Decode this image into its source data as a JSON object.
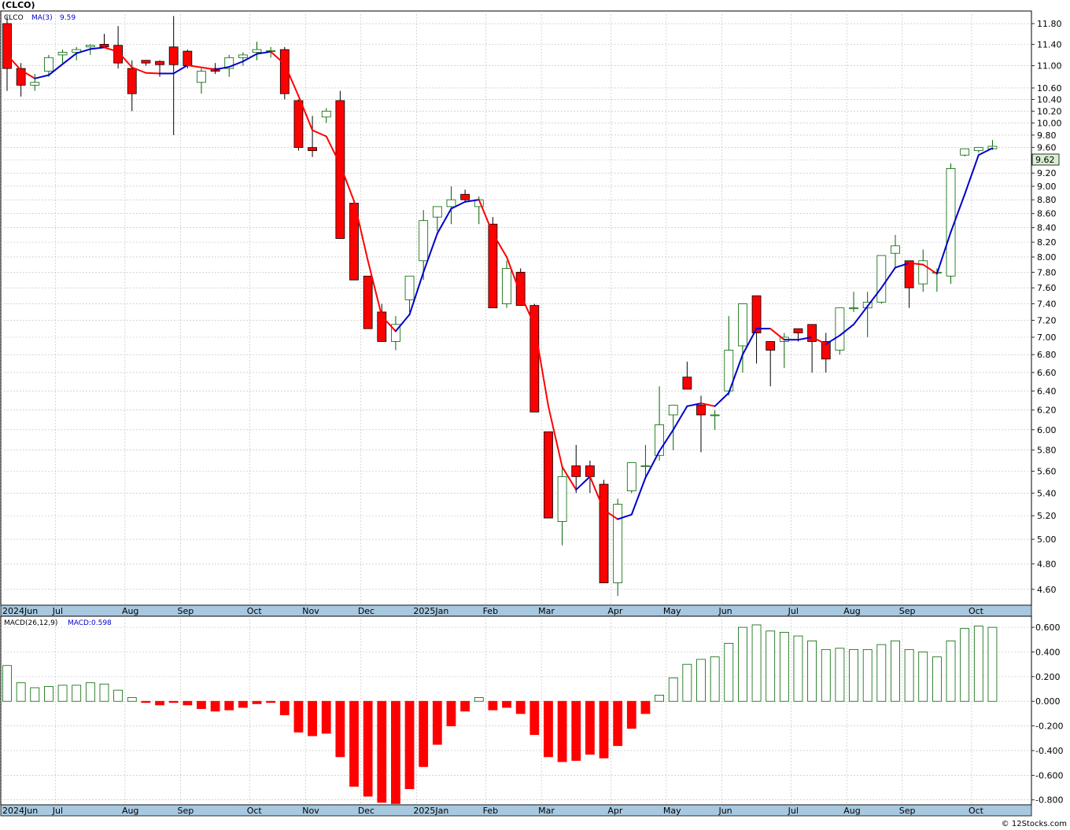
{
  "title": "(CLCO)",
  "watermark": "© 12Stocks.com",
  "price_legend": {
    "symbol": "CLCO",
    "ma_label": "MA(3)",
    "ma_value": "9.59"
  },
  "macd_legend": {
    "label": "MACD(26,12,9)",
    "value": "MACD:0.598"
  },
  "last_price": "9.62",
  "colors": {
    "up": "#006400",
    "down": "#ff0000",
    "ma_up": "#0000cc",
    "ma_down": "#ff0000",
    "grid": "#bbbbbb",
    "axis_bar": "#a8c8e0",
    "last_price_bg": "#d8f0d0"
  },
  "chart_data": [
    {
      "type": "candlestick",
      "title": "(CLCO)",
      "yticks": [
        "11.80",
        "11.40",
        "11.00",
        "10.60",
        "10.40",
        "10.20",
        "10.00",
        "9.80",
        "9.60",
        "9.40",
        "9.20",
        "9.00",
        "8.80",
        "8.60",
        "8.40",
        "8.20",
        "8.00",
        "7.80",
        "7.60",
        "7.40",
        "7.20",
        "7.00",
        "6.80",
        "6.60",
        "6.40",
        "6.20",
        "6.00",
        "5.80",
        "5.60",
        "5.40",
        "5.20",
        "5.00",
        "4.80",
        "4.60"
      ],
      "month_labels": [
        "2024Jun",
        "Jul",
        "Aug",
        "Sep",
        "Oct",
        "Nov",
        "Dec",
        "2025Jan",
        "Feb",
        "Mar",
        "Apr",
        "May",
        "Jun",
        "Jul",
        "Aug",
        "Sep",
        "Oct"
      ],
      "month_week_index": [
        0,
        4,
        9,
        13,
        18,
        22,
        26,
        30,
        35,
        39,
        44,
        48,
        52,
        57,
        61,
        65,
        70
      ],
      "ohlc": [
        [
          11.8,
          11.95,
          10.55,
          10.95
        ],
        [
          10.95,
          11.05,
          10.45,
          10.65
        ],
        [
          10.65,
          10.85,
          10.55,
          10.7
        ],
        [
          10.9,
          11.2,
          10.8,
          11.15
        ],
        [
          11.2,
          11.3,
          11.05,
          11.25
        ],
        [
          11.25,
          11.35,
          11.1,
          11.3
        ],
        [
          11.35,
          11.4,
          11.2,
          11.38
        ],
        [
          11.4,
          11.6,
          11.35,
          11.35
        ],
        [
          11.38,
          11.75,
          10.95,
          11.05
        ],
        [
          10.95,
          11.1,
          10.2,
          10.5
        ],
        [
          11.1,
          11.1,
          11.0,
          11.05
        ],
        [
          11.08,
          11.1,
          10.8,
          11.02
        ],
        [
          11.35,
          11.95,
          9.8,
          11.02
        ],
        [
          11.27,
          11.3,
          10.95,
          11.0
        ],
        [
          10.7,
          10.95,
          10.5,
          10.9
        ],
        [
          10.95,
          11.05,
          10.85,
          10.9
        ],
        [
          10.95,
          11.2,
          10.8,
          11.15
        ],
        [
          11.15,
          11.25,
          11.0,
          11.2
        ],
        [
          11.25,
          11.45,
          11.1,
          11.3
        ],
        [
          11.28,
          11.35,
          11.15,
          11.28
        ],
        [
          11.3,
          11.35,
          10.4,
          10.5
        ],
        [
          10.38,
          10.4,
          9.55,
          9.6
        ],
        [
          9.6,
          10.12,
          9.45,
          9.55
        ],
        [
          10.1,
          10.25,
          10.0,
          10.2
        ],
        [
          10.38,
          10.55,
          8.25,
          8.25
        ],
        [
          8.75,
          8.75,
          7.7,
          7.7
        ],
        [
          7.75,
          7.75,
          7.1,
          7.1
        ],
        [
          7.3,
          7.4,
          6.95,
          6.95
        ],
        [
          6.95,
          7.25,
          6.85,
          7.15
        ],
        [
          7.45,
          7.75,
          7.3,
          7.75
        ],
        [
          7.95,
          8.65,
          7.7,
          8.5
        ],
        [
          8.55,
          8.7,
          8.35,
          8.7
        ],
        [
          8.7,
          9.0,
          8.45,
          8.8
        ],
        [
          8.88,
          8.95,
          8.78,
          8.8
        ],
        [
          8.7,
          8.85,
          8.45,
          8.8
        ],
        [
          8.45,
          8.55,
          7.35,
          7.35
        ],
        [
          7.4,
          7.95,
          7.35,
          7.85
        ],
        [
          7.8,
          7.85,
          7.38,
          7.38
        ],
        [
          7.38,
          7.4,
          6.18,
          6.18
        ],
        [
          5.98,
          5.98,
          5.18,
          5.18
        ],
        [
          5.15,
          5.65,
          4.95,
          5.55
        ],
        [
          5.65,
          5.85,
          5.4,
          5.55
        ],
        [
          5.65,
          5.7,
          5.4,
          5.55
        ],
        [
          5.48,
          5.52,
          4.65,
          4.65
        ],
        [
          4.65,
          5.35,
          4.55,
          5.3
        ],
        [
          5.42,
          5.68,
          5.4,
          5.68
        ],
        [
          5.65,
          5.85,
          5.55,
          5.65
        ],
        [
          5.75,
          6.45,
          5.7,
          6.05
        ],
        [
          6.15,
          6.25,
          5.8,
          6.25
        ],
        [
          6.55,
          6.72,
          6.42,
          6.42
        ],
        [
          6.25,
          6.35,
          5.78,
          6.15
        ],
        [
          6.15,
          6.2,
          6.0,
          6.15
        ],
        [
          6.4,
          7.25,
          6.35,
          6.85
        ],
        [
          6.9,
          7.4,
          6.6,
          7.4
        ],
        [
          7.5,
          7.5,
          6.7,
          7.05
        ],
        [
          6.95,
          6.95,
          6.45,
          6.85
        ],
        [
          6.95,
          7.05,
          6.65,
          7.0
        ],
        [
          7.1,
          7.1,
          6.95,
          7.05
        ],
        [
          7.15,
          7.15,
          6.6,
          6.95
        ],
        [
          6.95,
          7.05,
          6.6,
          6.75
        ],
        [
          6.85,
          7.35,
          6.8,
          7.35
        ],
        [
          7.35,
          7.55,
          7.3,
          7.35
        ],
        [
          7.35,
          7.55,
          7.0,
          7.42
        ],
        [
          7.42,
          8.0,
          7.4,
          8.02
        ],
        [
          8.05,
          8.3,
          7.85,
          8.15
        ],
        [
          7.95,
          7.95,
          7.35,
          7.6
        ],
        [
          7.65,
          8.1,
          7.55,
          7.95
        ],
        [
          7.8,
          7.85,
          7.55,
          7.8
        ],
        [
          7.75,
          9.35,
          7.65,
          9.27
        ],
        [
          9.48,
          9.58,
          9.46,
          9.58
        ],
        [
          9.55,
          9.6,
          9.52,
          9.6
        ],
        [
          9.58,
          9.72,
          9.56,
          9.62
        ]
      ],
      "ma3": [
        11.2,
        10.92,
        10.77,
        10.83,
        11.03,
        11.23,
        11.31,
        11.34,
        11.26,
        10.97,
        10.87,
        10.86,
        10.86,
        11.01,
        10.97,
        10.93,
        10.98,
        11.08,
        11.22,
        11.26,
        11.03,
        10.46,
        9.88,
        9.78,
        9.33,
        8.78,
        7.95,
        7.25,
        7.07,
        7.27,
        7.8,
        8.32,
        8.67,
        8.77,
        8.8,
        8.32,
        8.0,
        7.52,
        7.14,
        6.24,
        5.64,
        5.43,
        5.55,
        5.25,
        5.17,
        5.21,
        5.54,
        5.79,
        6.0,
        6.24,
        6.27,
        6.24,
        6.38,
        6.8,
        7.1,
        7.1,
        6.97,
        6.97,
        7.0,
        6.92,
        7.02,
        7.15,
        7.37,
        7.6,
        7.86,
        7.92,
        7.9,
        7.78,
        8.34,
        8.88,
        9.48,
        9.59
      ],
      "ylim": [
        4.48,
        12.05
      ],
      "scale": "log"
    },
    {
      "type": "bar",
      "title": "MACD(26,12,9)",
      "yticks": [
        "0.600",
        "0.400",
        "0.200",
        "0.000",
        "-0.200",
        "-0.400",
        "-0.600",
        "-0.800"
      ],
      "month_labels": [
        "2024Jun",
        "Jul",
        "Aug",
        "Sep",
        "Oct",
        "Nov",
        "Dec",
        "2025Jan",
        "Feb",
        "Mar",
        "Apr",
        "May",
        "Jun",
        "Jul",
        "Aug",
        "Sep",
        "Oct"
      ],
      "values": [
        0.29,
        0.15,
        0.11,
        0.12,
        0.13,
        0.13,
        0.15,
        0.14,
        0.09,
        0.03,
        -0.01,
        -0.03,
        -0.01,
        -0.03,
        -0.06,
        -0.08,
        -0.07,
        -0.05,
        -0.02,
        -0.01,
        -0.11,
        -0.25,
        -0.28,
        -0.26,
        -0.45,
        -0.69,
        -0.77,
        -0.82,
        -0.83,
        -0.71,
        -0.53,
        -0.35,
        -0.2,
        -0.08,
        0.03,
        -0.07,
        -0.05,
        -0.1,
        -0.27,
        -0.45,
        -0.49,
        -0.48,
        -0.43,
        -0.46,
        -0.36,
        -0.22,
        -0.1,
        0.05,
        0.19,
        0.3,
        0.34,
        0.36,
        0.47,
        0.6,
        0.62,
        0.57,
        0.56,
        0.53,
        0.49,
        0.42,
        0.43,
        0.42,
        0.42,
        0.46,
        0.49,
        0.42,
        0.4,
        0.36,
        0.49,
        0.59,
        0.61,
        0.6
      ],
      "ylim": [
        -0.84,
        0.69
      ]
    }
  ]
}
